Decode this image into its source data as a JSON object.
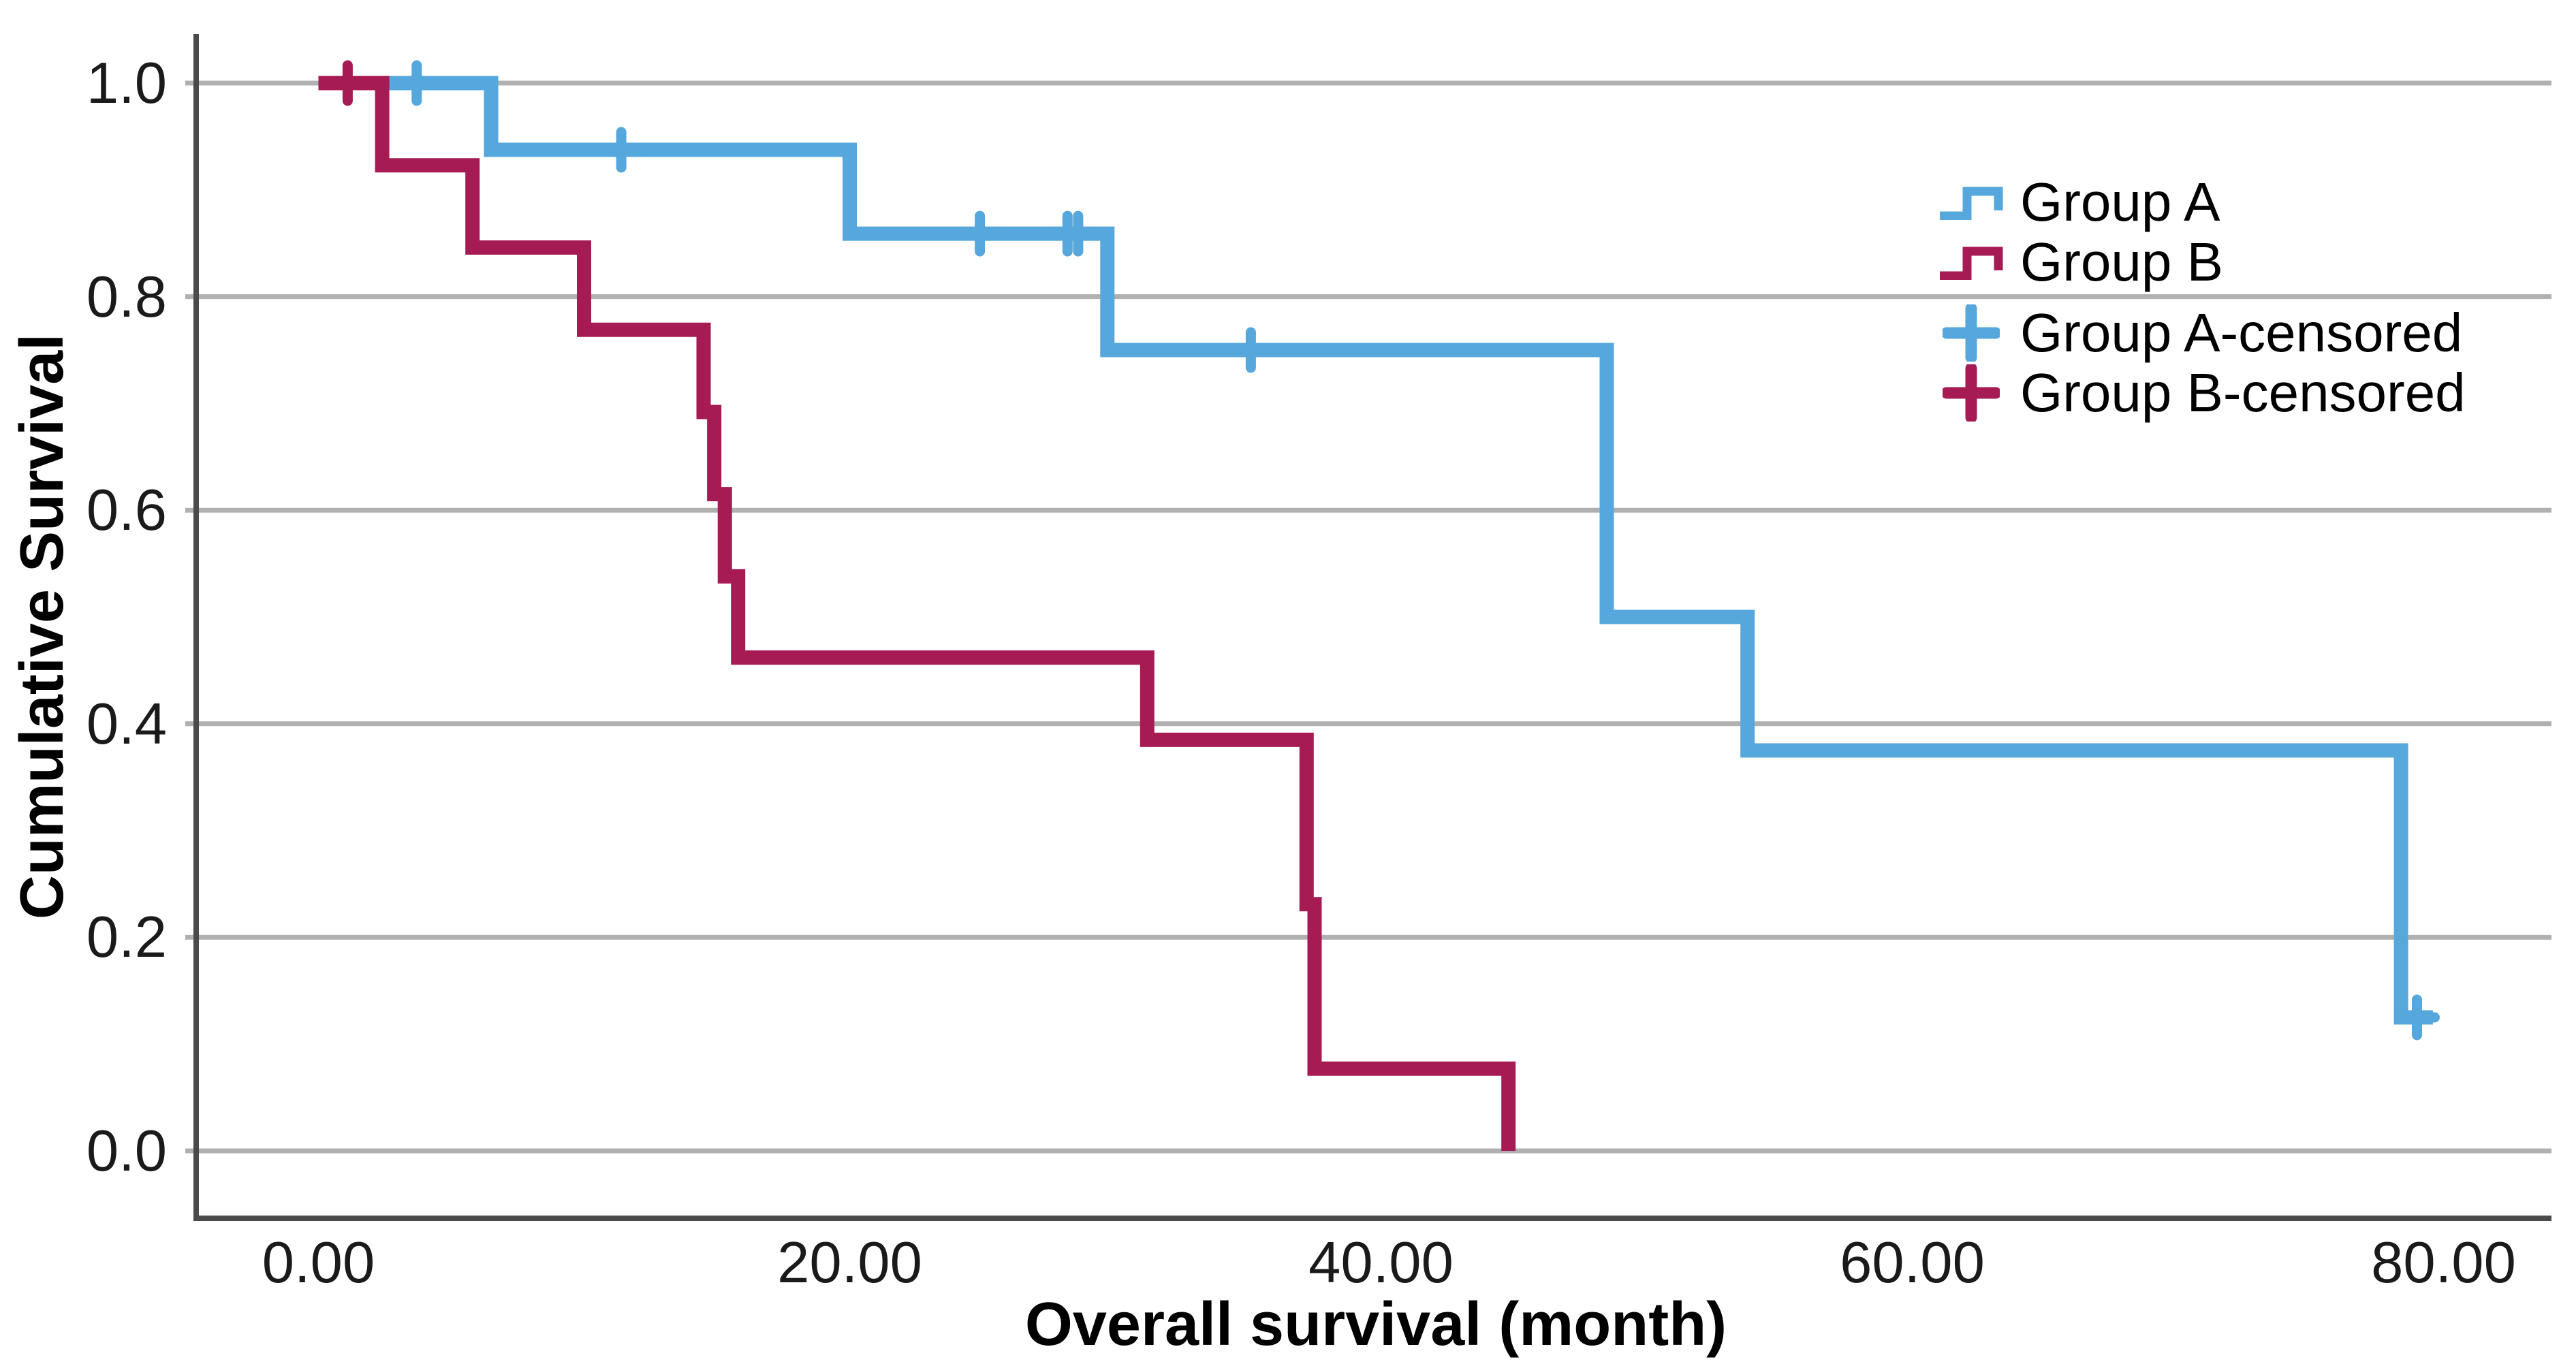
{
  "chart_data": {
    "type": "line",
    "subtype": "kaplan-meier-step-survival",
    "title": "",
    "xlabel": "Overall survival (month)",
    "ylabel": "Cumulative Survival",
    "x_ticks": [
      {
        "value": 0,
        "label": "0.00"
      },
      {
        "value": 20,
        "label": "20.00"
      },
      {
        "value": 40,
        "label": "40.00"
      },
      {
        "value": 60,
        "label": "60.00"
      },
      {
        "value": 80,
        "label": "80.00"
      }
    ],
    "y_ticks": [
      {
        "value": 1.0,
        "label": "1.0"
      },
      {
        "value": 0.8,
        "label": "0.8"
      },
      {
        "value": 0.6,
        "label": "0.6"
      },
      {
        "value": 0.4,
        "label": "0.4"
      },
      {
        "value": 0.2,
        "label": "0.2"
      },
      {
        "value": 0.0,
        "label": "0.0"
      }
    ],
    "xlim": [
      -4.6,
      85.0
    ],
    "ylim": [
      -0.06,
      1.04
    ],
    "grid": true,
    "gridline_color": "#B0B0B0",
    "axis_color": "#4A4A4A",
    "legend_position": "inside-upper-right",
    "series": [
      {
        "name": "Group A",
        "color": "#56A7DB",
        "points": [
          [
            0,
            1.0
          ],
          [
            6.5,
            1.0
          ],
          [
            6.5,
            0.9375
          ],
          [
            20,
            0.9375
          ],
          [
            20,
            0.859
          ],
          [
            29.7,
            0.859
          ],
          [
            29.7,
            0.75
          ],
          [
            48.5,
            0.75
          ],
          [
            48.5,
            0.5
          ],
          [
            53.8,
            0.5
          ],
          [
            53.8,
            0.375
          ],
          [
            78.4,
            0.375
          ],
          [
            78.4,
            0.125
          ],
          [
            79.6,
            0.125
          ]
        ],
        "censored": [
          [
            3.7,
            1.0
          ],
          [
            11.4,
            0.9375
          ],
          [
            24.9,
            0.859
          ],
          [
            28.2,
            0.859
          ],
          [
            28.6,
            0.859
          ],
          [
            35.1,
            0.75
          ],
          [
            79.0,
            0.125
          ]
        ]
      },
      {
        "name": "Group B",
        "color": "#A61B53",
        "points": [
          [
            0,
            1.0
          ],
          [
            2.4,
            1.0
          ],
          [
            2.4,
            0.923
          ],
          [
            5.8,
            0.923
          ],
          [
            5.8,
            0.846
          ],
          [
            10,
            0.846
          ],
          [
            10,
            0.769
          ],
          [
            14.5,
            0.769
          ],
          [
            14.5,
            0.692
          ],
          [
            14.9,
            0.692
          ],
          [
            14.9,
            0.615
          ],
          [
            15.3,
            0.615
          ],
          [
            15.3,
            0.538
          ],
          [
            15.8,
            0.538
          ],
          [
            15.8,
            0.462
          ],
          [
            31.2,
            0.462
          ],
          [
            31.2,
            0.385
          ],
          [
            37.2,
            0.385
          ],
          [
            37.2,
            0.231
          ],
          [
            37.5,
            0.231
          ],
          [
            37.5,
            0.077
          ],
          [
            44.8,
            0.077
          ],
          [
            44.8,
            0.0
          ]
        ],
        "censored": [
          [
            1.1,
            1.0
          ]
        ]
      }
    ],
    "legend": [
      {
        "label": "Group A",
        "swatch": "step",
        "color": "#56A7DB"
      },
      {
        "label": "Group B",
        "swatch": "step",
        "color": "#A61B53"
      },
      {
        "label": "Group A-censored",
        "swatch": "plus",
        "color": "#56A7DB"
      },
      {
        "label": "Group B-censored",
        "swatch": "plus",
        "color": "#A61B53"
      }
    ]
  }
}
